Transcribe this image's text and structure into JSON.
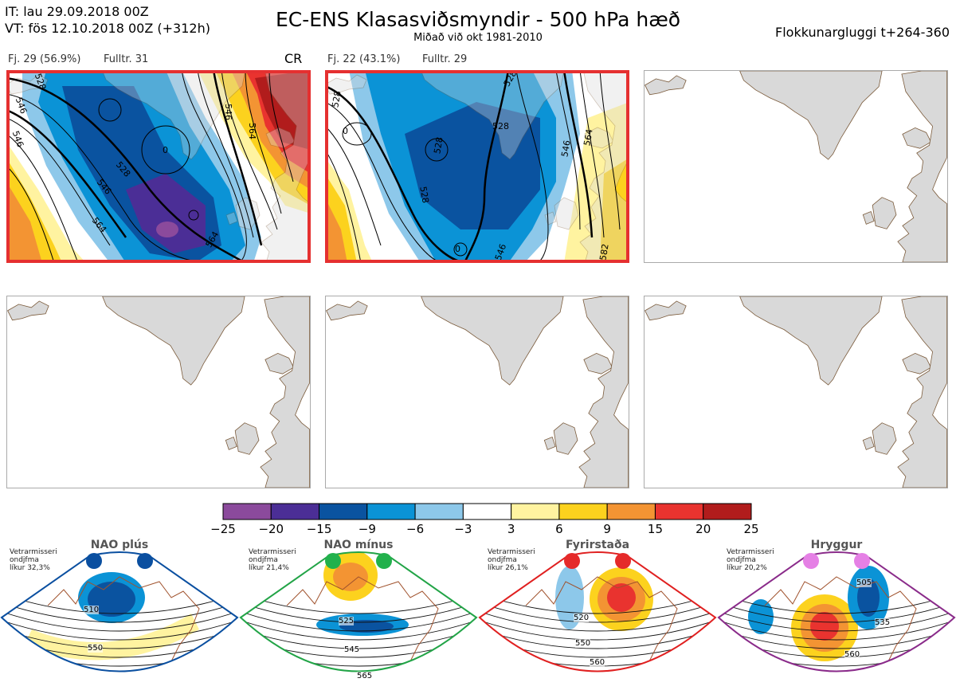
{
  "header": {
    "it_line": "IT: lau 29.09.2018 00Z",
    "vt_line": "VT: fös 12.10.2018 00Z  (+312h)",
    "title": "EC-ENS Klasasviðsmyndir - 500 hPa hæð",
    "subtitle": "Miðað við okt 1981-2010",
    "window": "Flokkunargluggi t+264-360"
  },
  "panels": [
    {
      "label": "Fj. 29 (56.9%)",
      "members": "Fulltr. 31",
      "tag": "CR",
      "active": true,
      "contour_labels": [
        "528",
        "546",
        "528",
        "546",
        "564",
        "546",
        "564",
        "546",
        "564",
        "0"
      ]
    },
    {
      "label": "Fj. 22 (43.1%)",
      "members": "Fulltr. 29",
      "tag": "",
      "active": true,
      "contour_labels": [
        "528",
        "528",
        "528",
        "528",
        "546",
        "564",
        "582",
        "546",
        "528",
        "0",
        "0"
      ]
    },
    {
      "label": "",
      "members": "",
      "tag": "",
      "active": false
    },
    {
      "label": "",
      "members": "",
      "tag": "",
      "active": false
    },
    {
      "label": "",
      "members": "",
      "tag": "",
      "active": false
    },
    {
      "label": "",
      "members": "",
      "tag": "",
      "active": false
    }
  ],
  "colorbar": {
    "ticks": [
      "−25",
      "−20",
      "−15",
      "−9",
      "−6",
      "−3",
      "3",
      "6",
      "9",
      "15",
      "20",
      "25"
    ],
    "colors": [
      "#8b4a9c",
      "#4b2e96",
      "#0a53a0",
      "#0b93d6",
      "#8dc8ea",
      "#ffffff",
      "#fff3a0",
      "#fcd21e",
      "#f39433",
      "#e9332f",
      "#b11c1c"
    ]
  },
  "regimes": [
    {
      "name": "NAO plús",
      "note1": "Vetrarmisseri",
      "note2": "ondjfma",
      "note3": "líkur 32,3%",
      "border": "#0a4fa0",
      "dot": "#0a4fa0",
      "contours": [
        "510",
        "550"
      ]
    },
    {
      "name": "NAO mínus",
      "note1": "Vetrarmisseri",
      "note2": "ondjfma",
      "note3": "líkur 21,4%",
      "border": "#22a447",
      "dot": "#22b14c",
      "contours": [
        "525",
        "545",
        "565"
      ]
    },
    {
      "name": "Fyrirstaða",
      "note1": "Vetrarmisseri",
      "note2": "ondjfma",
      "note3": "líkur 26,1%",
      "border": "#e02020",
      "dot": "#e52a2a",
      "contours": [
        "520",
        "550",
        "560"
      ]
    },
    {
      "name": "Hryggur",
      "note1": "Vetrarmisseri",
      "note2": "ondjfma",
      "note3": "líkur 20,2%",
      "border": "#8a2b8a",
      "dot": "#e580e5",
      "contours": [
        "505",
        "535",
        "560"
      ]
    }
  ]
}
